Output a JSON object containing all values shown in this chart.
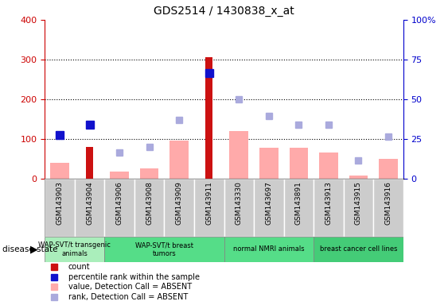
{
  "title": "GDS2514 / 1430838_x_at",
  "samples": [
    "GSM143903",
    "GSM143904",
    "GSM143906",
    "GSM143908",
    "GSM143909",
    "GSM143911",
    "GSM143330",
    "GSM143697",
    "GSM143891",
    "GSM143913",
    "GSM143915",
    "GSM143916"
  ],
  "count_values": [
    0,
    80,
    0,
    0,
    0,
    305,
    0,
    0,
    0,
    0,
    0,
    0
  ],
  "percentile_values": [
    110,
    135,
    0,
    0,
    0,
    265,
    0,
    0,
    0,
    0,
    0,
    0
  ],
  "value_absent": [
    40,
    0,
    18,
    25,
    95,
    0,
    120,
    78,
    78,
    65,
    8,
    50
  ],
  "rank_absent": [
    110,
    0,
    65,
    80,
    148,
    0,
    200,
    158,
    135,
    135,
    45,
    105
  ],
  "groups": [
    {
      "label": "WAP-SVT/t transgenic\nanimals",
      "start": 0,
      "end": 1,
      "color": "#aaeebb"
    },
    {
      "label": "WAP-SVT/t breast\ntumors",
      "start": 2,
      "end": 5,
      "color": "#66dd88"
    },
    {
      "label": "normal NMRI animals",
      "start": 6,
      "end": 8,
      "color": "#66dd88"
    },
    {
      "label": "breast cancer cell lines",
      "start": 9,
      "end": 11,
      "color": "#55cc77"
    }
  ],
  "ylim_left": [
    0,
    400
  ],
  "ylim_right": [
    0,
    100
  ],
  "count_color": "#cc1111",
  "percentile_color": "#1111cc",
  "value_absent_color": "#ffaaaa",
  "rank_absent_color": "#aaaadd",
  "bg_color": "#cccccc",
  "left_axis_color": "#cc0000",
  "right_axis_color": "#0000cc"
}
